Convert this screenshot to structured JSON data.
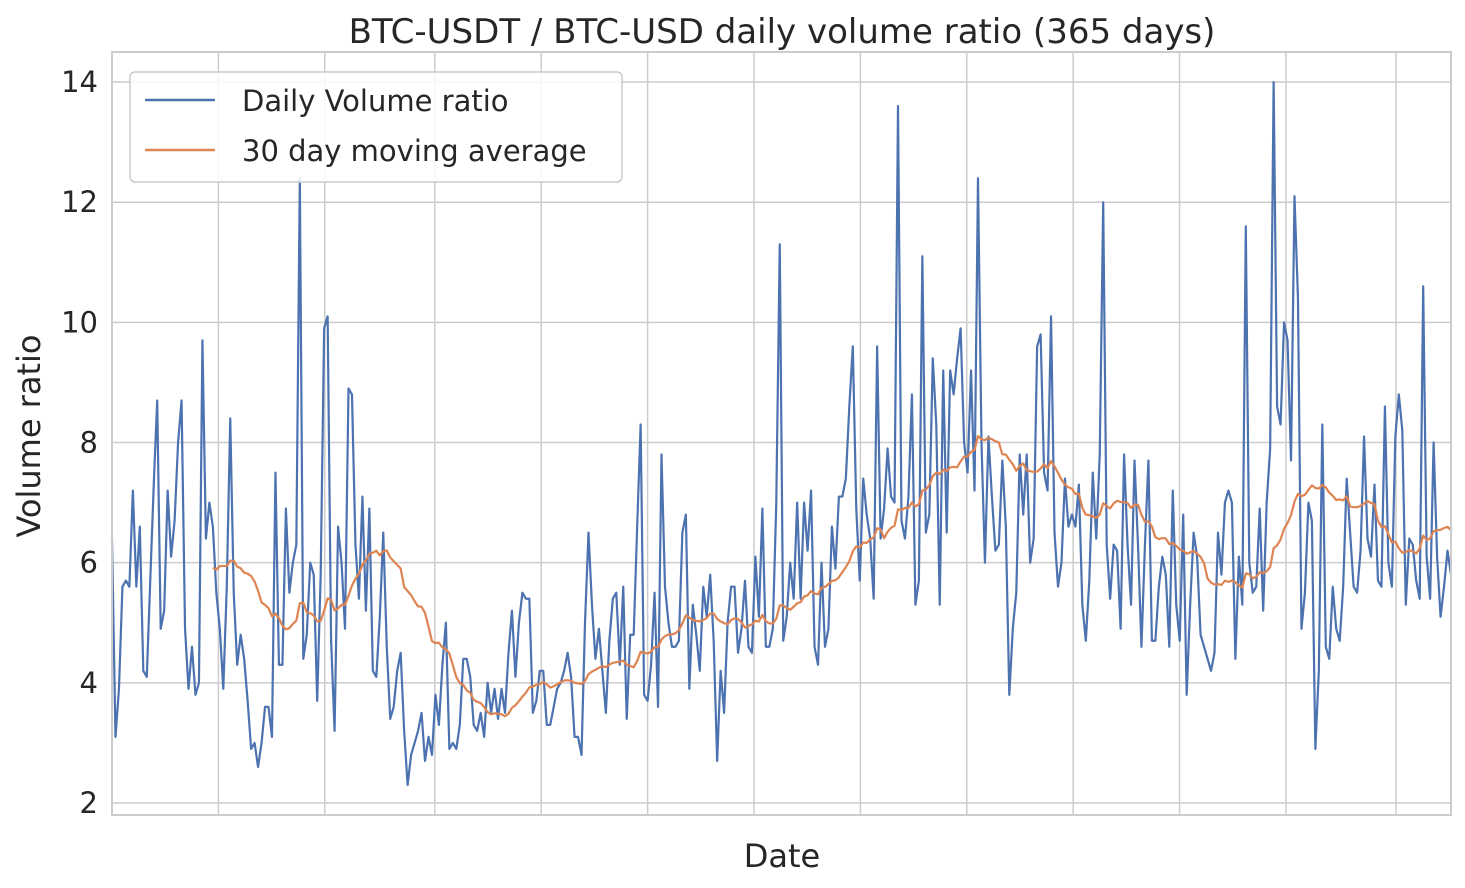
{
  "chart_data": {
    "type": "line",
    "title": "BTC-USDT / BTC-USD daily volume ratio (365 days)",
    "xlabel": "Date",
    "ylabel": "Volume ratio",
    "xlim": [
      0,
      365
    ],
    "ylim": [
      1.8,
      14.5
    ],
    "yticks": [
      2,
      4,
      6,
      8,
      10,
      12,
      14
    ],
    "x_grid_days": [
      29,
      58,
      88,
      117,
      146,
      175,
      204,
      233,
      262,
      291,
      320,
      350
    ],
    "grid": true,
    "legend_position": "top-left",
    "series": [
      {
        "name": "Daily Volume ratio",
        "color": "#4c72b0",
        "values": [
          6.4,
          3.1,
          3.9,
          5.6,
          5.7,
          5.6,
          7.2,
          5.6,
          6.6,
          4.2,
          4.1,
          5.7,
          7.3,
          8.7,
          4.9,
          5.2,
          7.2,
          6.1,
          6.7,
          8.0,
          8.7,
          4.9,
          3.9,
          4.6,
          3.8,
          4.0,
          9.7,
          6.4,
          7.0,
          6.6,
          5.5,
          4.9,
          3.9,
          5.6,
          8.4,
          5.5,
          4.3,
          4.8,
          4.4,
          3.7,
          2.9,
          3.0,
          2.6,
          3.0,
          3.6,
          3.6,
          3.1,
          7.5,
          4.3,
          4.3,
          6.9,
          5.5,
          6.0,
          6.3,
          12.4,
          4.4,
          4.8,
          6.0,
          5.8,
          3.7,
          5.8,
          9.9,
          10.1,
          4.7,
          3.2,
          6.6,
          6.0,
          4.9,
          8.9,
          8.8,
          6.3,
          5.4,
          7.1,
          5.2,
          6.9,
          4.2,
          4.1,
          5.1,
          6.5,
          4.6,
          3.4,
          3.6,
          4.2,
          4.5,
          3.2,
          2.3,
          2.8,
          3.0,
          3.2,
          3.5,
          2.7,
          3.1,
          2.8,
          3.8,
          3.3,
          4.3,
          5.0,
          2.9,
          3.0,
          2.9,
          3.3,
          4.4,
          4.4,
          4.1,
          3.3,
          3.2,
          3.5,
          3.1,
          4.0,
          3.5,
          3.9,
          3.4,
          3.9,
          3.5,
          4.5,
          5.2,
          4.1,
          5.0,
          5.5,
          5.4,
          5.4,
          3.5,
          3.7,
          4.2,
          4.2,
          3.3,
          3.3,
          3.6,
          3.9,
          4.0,
          4.2,
          4.5,
          4.1,
          3.1,
          3.1,
          2.8,
          5.0,
          6.5,
          5.3,
          4.4,
          4.9,
          4.2,
          3.5,
          4.7,
          5.4,
          5.5,
          4.3,
          5.6,
          3.4,
          4.8,
          4.8,
          6.6,
          8.3,
          3.8,
          3.7,
          4.3,
          5.5,
          3.6,
          7.8,
          5.6,
          5.0,
          4.6,
          4.6,
          4.7,
          6.5,
          6.8,
          3.9,
          5.3,
          4.8,
          4.2,
          5.6,
          5.1,
          5.8,
          4.7,
          2.7,
          4.2,
          3.5,
          5.0,
          5.6,
          5.6,
          4.5,
          4.9,
          5.7,
          4.6,
          4.5,
          6.1,
          5.1,
          6.9,
          4.6,
          4.6,
          4.9,
          7.0,
          11.3,
          4.7,
          5.1,
          6.0,
          5.4,
          7.0,
          5.4,
          7.0,
          6.2,
          7.2,
          4.6,
          4.3,
          6.0,
          4.6,
          4.9,
          6.6,
          5.9,
          7.1,
          7.1,
          7.4,
          8.6,
          9.6,
          6.9,
          5.7,
          7.4,
          6.8,
          6.4,
          5.4,
          9.6,
          6.4,
          6.9,
          7.9,
          7.1,
          7.0,
          13.6,
          6.7,
          6.4,
          7.1,
          8.8,
          5.3,
          5.7,
          11.1,
          6.5,
          6.8,
          9.4,
          8.3,
          5.3,
          9.2,
          6.5,
          9.2,
          8.8,
          9.4,
          9.9,
          8.0,
          7.5,
          9.2,
          7.2,
          12.4,
          8.0,
          6.0,
          8.1,
          7.1,
          6.2,
          6.3,
          7.7,
          6.6,
          3.8,
          4.9,
          5.5,
          7.8,
          6.8,
          7.8,
          6.0,
          6.4,
          9.6,
          9.8,
          7.5,
          7.2,
          10.1,
          6.5,
          5.6,
          6.0,
          7.4,
          6.6,
          6.8,
          6.6,
          7.3,
          5.3,
          4.7,
          5.7,
          7.5,
          6.4,
          7.8,
          12.0,
          6.3,
          5.4,
          6.3,
          6.2,
          4.9,
          7.8,
          6.3,
          5.3,
          7.7,
          6.3,
          4.6,
          6.3,
          7.7,
          4.7,
          4.7,
          5.6,
          6.1,
          5.8,
          4.6,
          7.2,
          5.3,
          4.7,
          6.8,
          3.8,
          5.3,
          6.5,
          6.1,
          4.8,
          4.6,
          4.4,
          4.2,
          4.5,
          6.5,
          5.8,
          7.0,
          7.2,
          7.0,
          4.4,
          6.1,
          5.3,
          11.6,
          6.0,
          5.5,
          5.6,
          6.9,
          5.2,
          7.0,
          7.9,
          14.0,
          8.6,
          8.3,
          10.0,
          9.7,
          7.7,
          12.1,
          10.4,
          4.9,
          5.5,
          7.0,
          6.7,
          2.9,
          4.2,
          8.3,
          4.6,
          4.4,
          5.6,
          4.9,
          4.7,
          5.6,
          7.4,
          6.5,
          5.6,
          5.5,
          6.2,
          8.1,
          6.4,
          6.1,
          7.3,
          5.7,
          5.6,
          8.6,
          6.0,
          5.6,
          8.1,
          8.8,
          8.2,
          5.3,
          6.4,
          6.3,
          5.7,
          5.4,
          10.6,
          6.1,
          5.4,
          8.0,
          6.1,
          5.1,
          5.6,
          6.2,
          5.8
        ]
      },
      {
        "name": "30 day moving average",
        "color": "#dd8452",
        "window": 30
      }
    ]
  }
}
